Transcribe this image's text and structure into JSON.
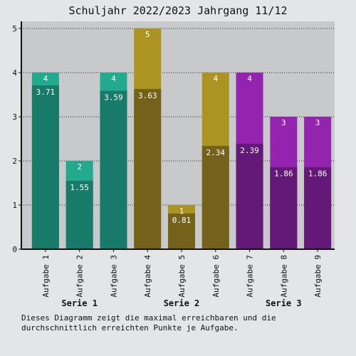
{
  "chart_data": {
    "type": "bar",
    "title": "Schuljahr 2022/2023 Jahrgang 11/12",
    "categories": [
      "Aufgabe 1",
      "Aufgabe 2",
      "Aufgabe 3",
      "Aufgabe 4",
      "Aufgabe 5",
      "Aufgabe 6",
      "Aufgabe 7",
      "Aufgabe 8",
      "Aufgabe 9"
    ],
    "max_points": [
      4,
      2,
      4,
      5,
      1,
      4,
      4,
      3,
      3
    ],
    "avg_points": [
      3.71,
      1.55,
      3.59,
      3.63,
      0.81,
      2.34,
      2.39,
      1.86,
      1.86
    ],
    "groups": [
      {
        "label": "Serie 1",
        "color_max": "#22aa8f",
        "color_avg": "#187a68"
      },
      {
        "label": "Serie 2",
        "color_max": "#ab9422",
        "color_avg": "#75621a"
      },
      {
        "label": "Serie 3",
        "color_max": "#9424b0",
        "color_avg": "#641878"
      }
    ],
    "ylim": [
      0,
      5
    ],
    "yticks": [
      "0",
      "1",
      "2",
      "3",
      "4",
      "5"
    ],
    "grid": true,
    "caption": "Dieses Diagramm zeigt die maximal erreichbaren und die durchschnittlich erreichten Punkte je Aufgabe."
  }
}
